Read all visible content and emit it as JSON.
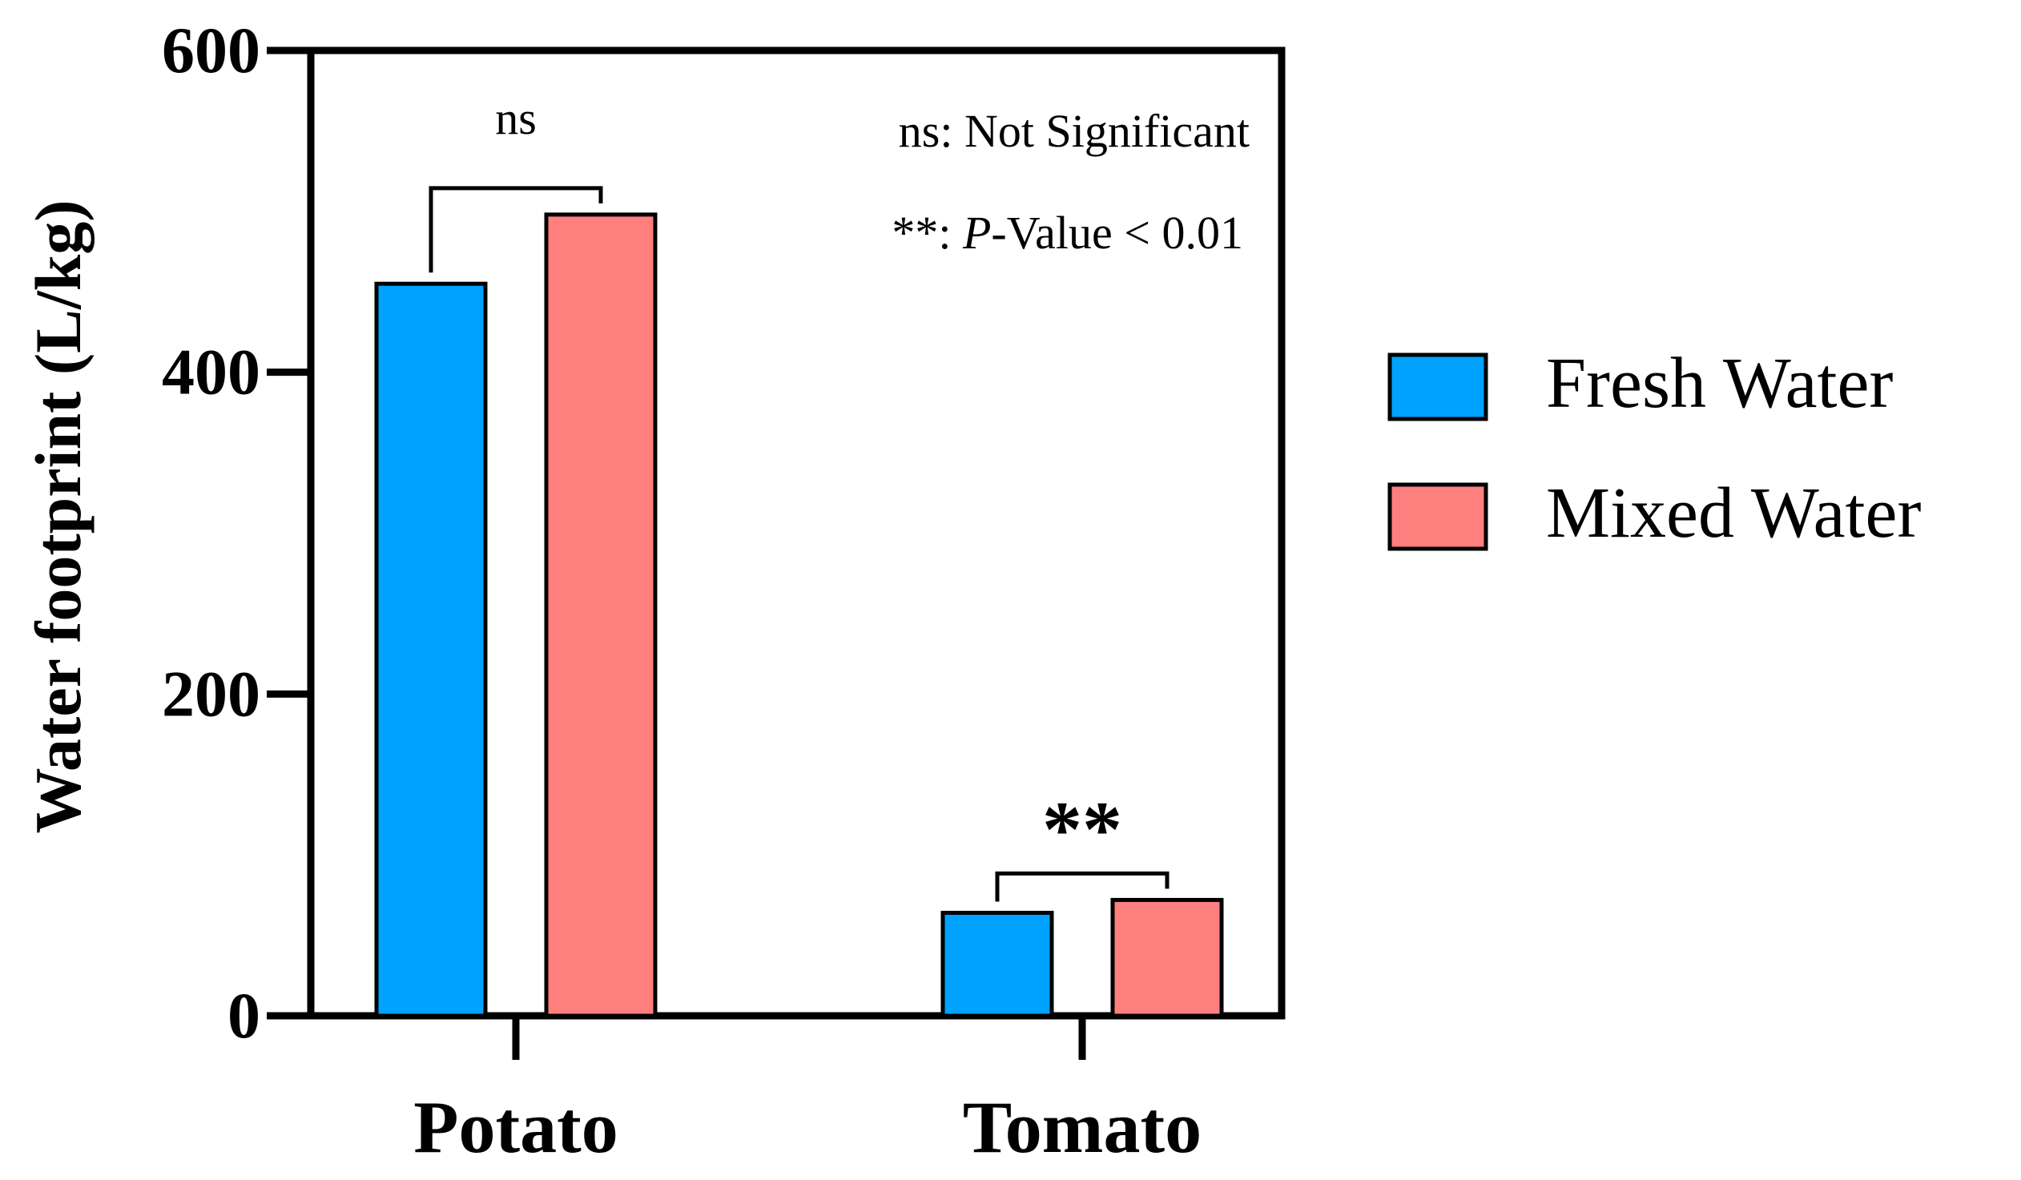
{
  "chart_data": {
    "type": "bar",
    "categories": [
      "Potato",
      "Tomato"
    ],
    "series": [
      {
        "name": "Fresh Water",
        "values": [
          455,
          64
        ],
        "color": "#00A2FF"
      },
      {
        "name": "Mixed Water",
        "values": [
          498,
          72
        ],
        "color": "#FF7F7F"
      }
    ],
    "title": "",
    "xlabel": "",
    "ylabel": "Water footprint (L/kg)",
    "ylim": [
      0,
      600
    ],
    "yticks": [
      "0",
      "200",
      "400",
      "600"
    ],
    "grid": false,
    "legend": {
      "position": "right"
    },
    "significance": [
      {
        "category": "Potato",
        "label": "ns"
      },
      {
        "category": "Tomato",
        "label": "**"
      }
    ],
    "notes": {
      "ns_note": "ns: Not Significant",
      "p_prefix": "**: ",
      "p_italic": "P",
      "p_suffix": "-Value < 0.01"
    }
  }
}
